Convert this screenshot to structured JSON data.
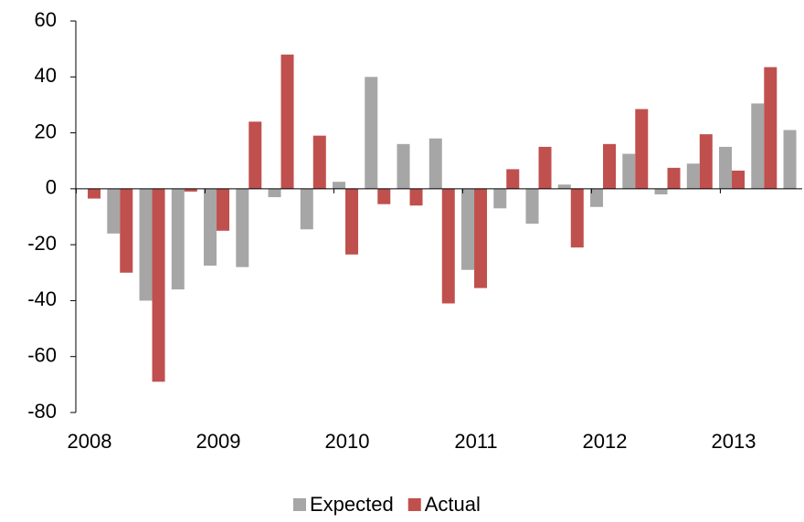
{
  "chart_data": {
    "type": "bar",
    "categories": [
      "2008",
      null,
      null,
      null,
      "2009",
      null,
      null,
      null,
      "2010",
      null,
      null,
      null,
      "2011",
      null,
      null,
      null,
      "2012",
      null,
      null,
      null,
      "2013",
      null,
      null
    ],
    "series": [
      {
        "name": "Expected",
        "color": "#a6a6a6",
        "values": [
          null,
          -16,
          -40,
          -36,
          -27.5,
          -28,
          -3,
          -14.5,
          2.5,
          40,
          16,
          18,
          -29,
          -7,
          -12.5,
          1.5,
          -6.5,
          12.5,
          -2,
          9,
          15,
          30.5,
          21
        ]
      },
      {
        "name": "Actual",
        "color": "#c0504d",
        "values": [
          -3.5,
          -30,
          -69,
          -1,
          -15,
          24,
          48,
          19,
          -23.5,
          -5.5,
          -6,
          -41,
          -35.5,
          7,
          15,
          -21,
          16,
          28.5,
          7.5,
          19.5,
          6.5,
          43.5,
          null
        ]
      }
    ],
    "ylim": [
      -80,
      60
    ],
    "yticks": [
      -80,
      -60,
      -40,
      -20,
      0,
      20,
      40,
      60
    ],
    "legend": "bottom"
  }
}
